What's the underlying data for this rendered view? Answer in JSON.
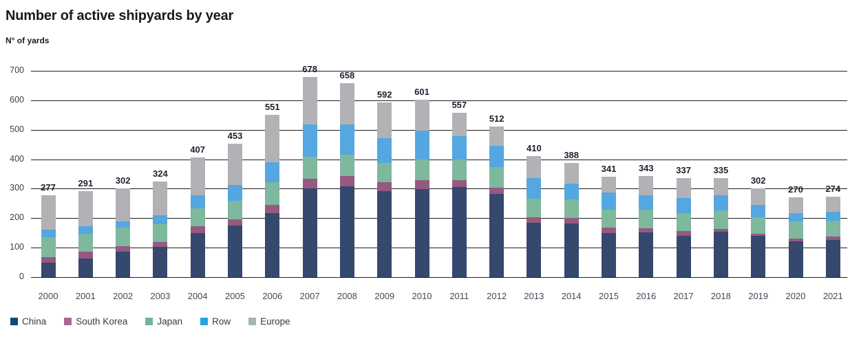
{
  "header": {
    "title": "Number of active shipyards by year",
    "subtitle": "N° of yards"
  },
  "chart_data": {
    "type": "bar",
    "variant": "stacked",
    "title": "Number of active shipyards by year",
    "ylabel": "N° of yards",
    "xlabel": "",
    "grid": "horizontal",
    "legend_position": "bottom",
    "ylim": [
      0,
      700
    ],
    "yticks": [
      0,
      100,
      200,
      300,
      400,
      500,
      600,
      700
    ],
    "categories": [
      "2000",
      "2001",
      "2002",
      "2003",
      "2004",
      "2005",
      "2006",
      "2007",
      "2008",
      "2009",
      "2010",
      "2011",
      "2012",
      "2013",
      "2014",
      "2015",
      "2016",
      "2017",
      "2018",
      "2019",
      "2020",
      "2021"
    ],
    "totals": [
      277,
      291,
      302,
      324,
      407,
      453,
      551,
      678,
      658,
      592,
      601,
      557,
      512,
      410,
      388,
      341,
      343,
      337,
      335,
      302,
      270,
      274
    ],
    "series": [
      {
        "name": "China",
        "color": "#35486e",
        "legend_color": "#17476b",
        "values": [
          48,
          63,
          87,
          102,
          150,
          176,
          218,
          300,
          309,
          292,
          299,
          305,
          283,
          184,
          182,
          149,
          151,
          140,
          154,
          139,
          121,
          127
        ]
      },
      {
        "name": "South Korea",
        "color": "#96597f",
        "legend_color": "#a9659b",
        "values": [
          20,
          23,
          19,
          17,
          22,
          21,
          26,
          33,
          33,
          31,
          30,
          24,
          21,
          19,
          18,
          19,
          15,
          17,
          10,
          9,
          10,
          10
        ]
      },
      {
        "name": "Japan",
        "color": "#7eb89d",
        "legend_color": "#6db695",
        "values": [
          68,
          60,
          61,
          61,
          62,
          63,
          77,
          75,
          73,
          64,
          70,
          69,
          70,
          64,
          63,
          60,
          63,
          60,
          62,
          56,
          58,
          55
        ]
      },
      {
        "name": "Row",
        "color": "#54a7e0",
        "legend_color": "#29a3e2",
        "values": [
          26,
          27,
          23,
          30,
          43,
          53,
          68,
          110,
          103,
          85,
          99,
          80,
          72,
          69,
          55,
          59,
          48,
          51,
          52,
          41,
          28,
          29
        ]
      },
      {
        "name": "Europe",
        "color": "#b2b2b6",
        "legend_color": "#a6b2b9",
        "values": [
          115,
          118,
          112,
          114,
          130,
          140,
          162,
          160,
          140,
          120,
          103,
          79,
          66,
          74,
          70,
          54,
          66,
          69,
          57,
          57,
          53,
          53
        ]
      }
    ]
  }
}
